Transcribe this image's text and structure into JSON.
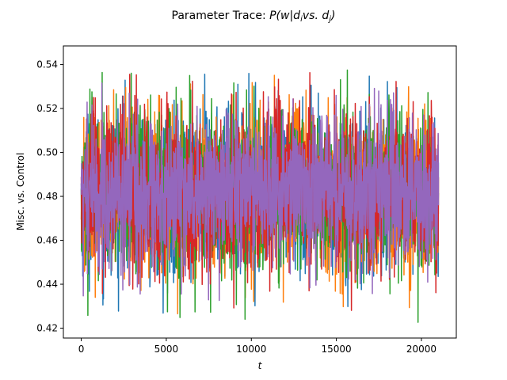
{
  "chart_data": {
    "type": "line",
    "title_prefix": "Parameter Trace: ",
    "title_math": "P(w|d",
    "title_sub_i": "i",
    "title_math_mid": "vs. d",
    "title_sub_j": "j",
    "title_math_end": ")",
    "xlabel": "t",
    "ylabel": "Misc. vs. Control",
    "xlim": [
      -1050,
      22050
    ],
    "ylim": [
      0.4155,
      0.5485
    ],
    "x_ticks": [
      0,
      5000,
      10000,
      15000,
      20000
    ],
    "y_ticks": [
      0.42,
      0.44,
      0.46,
      0.48,
      0.5,
      0.52,
      0.54
    ],
    "x_tick_labels": [
      "0",
      "5000",
      "10000",
      "15000",
      "20000"
    ],
    "y_tick_labels": [
      "0.42",
      "0.44",
      "0.46",
      "0.48",
      "0.50",
      "0.52",
      "0.54"
    ],
    "grid": false,
    "legend": "none",
    "num_samples": 21000,
    "series": [
      {
        "color": "#1f77b4",
        "mean": 0.482,
        "spread": 0.018,
        "min": 0.424,
        "max": 0.541
      },
      {
        "color": "#ff7f0e",
        "mean": 0.482,
        "spread": 0.018,
        "min": 0.423,
        "max": 0.543
      },
      {
        "color": "#2ca02c",
        "mean": 0.482,
        "spread": 0.018,
        "min": 0.421,
        "max": 0.539
      },
      {
        "color": "#d62728",
        "mean": 0.482,
        "spread": 0.018,
        "min": 0.42,
        "max": 0.537
      },
      {
        "color": "#9467bd",
        "mean": 0.482,
        "spread": 0.017,
        "min": 0.426,
        "max": 0.532
      }
    ]
  }
}
